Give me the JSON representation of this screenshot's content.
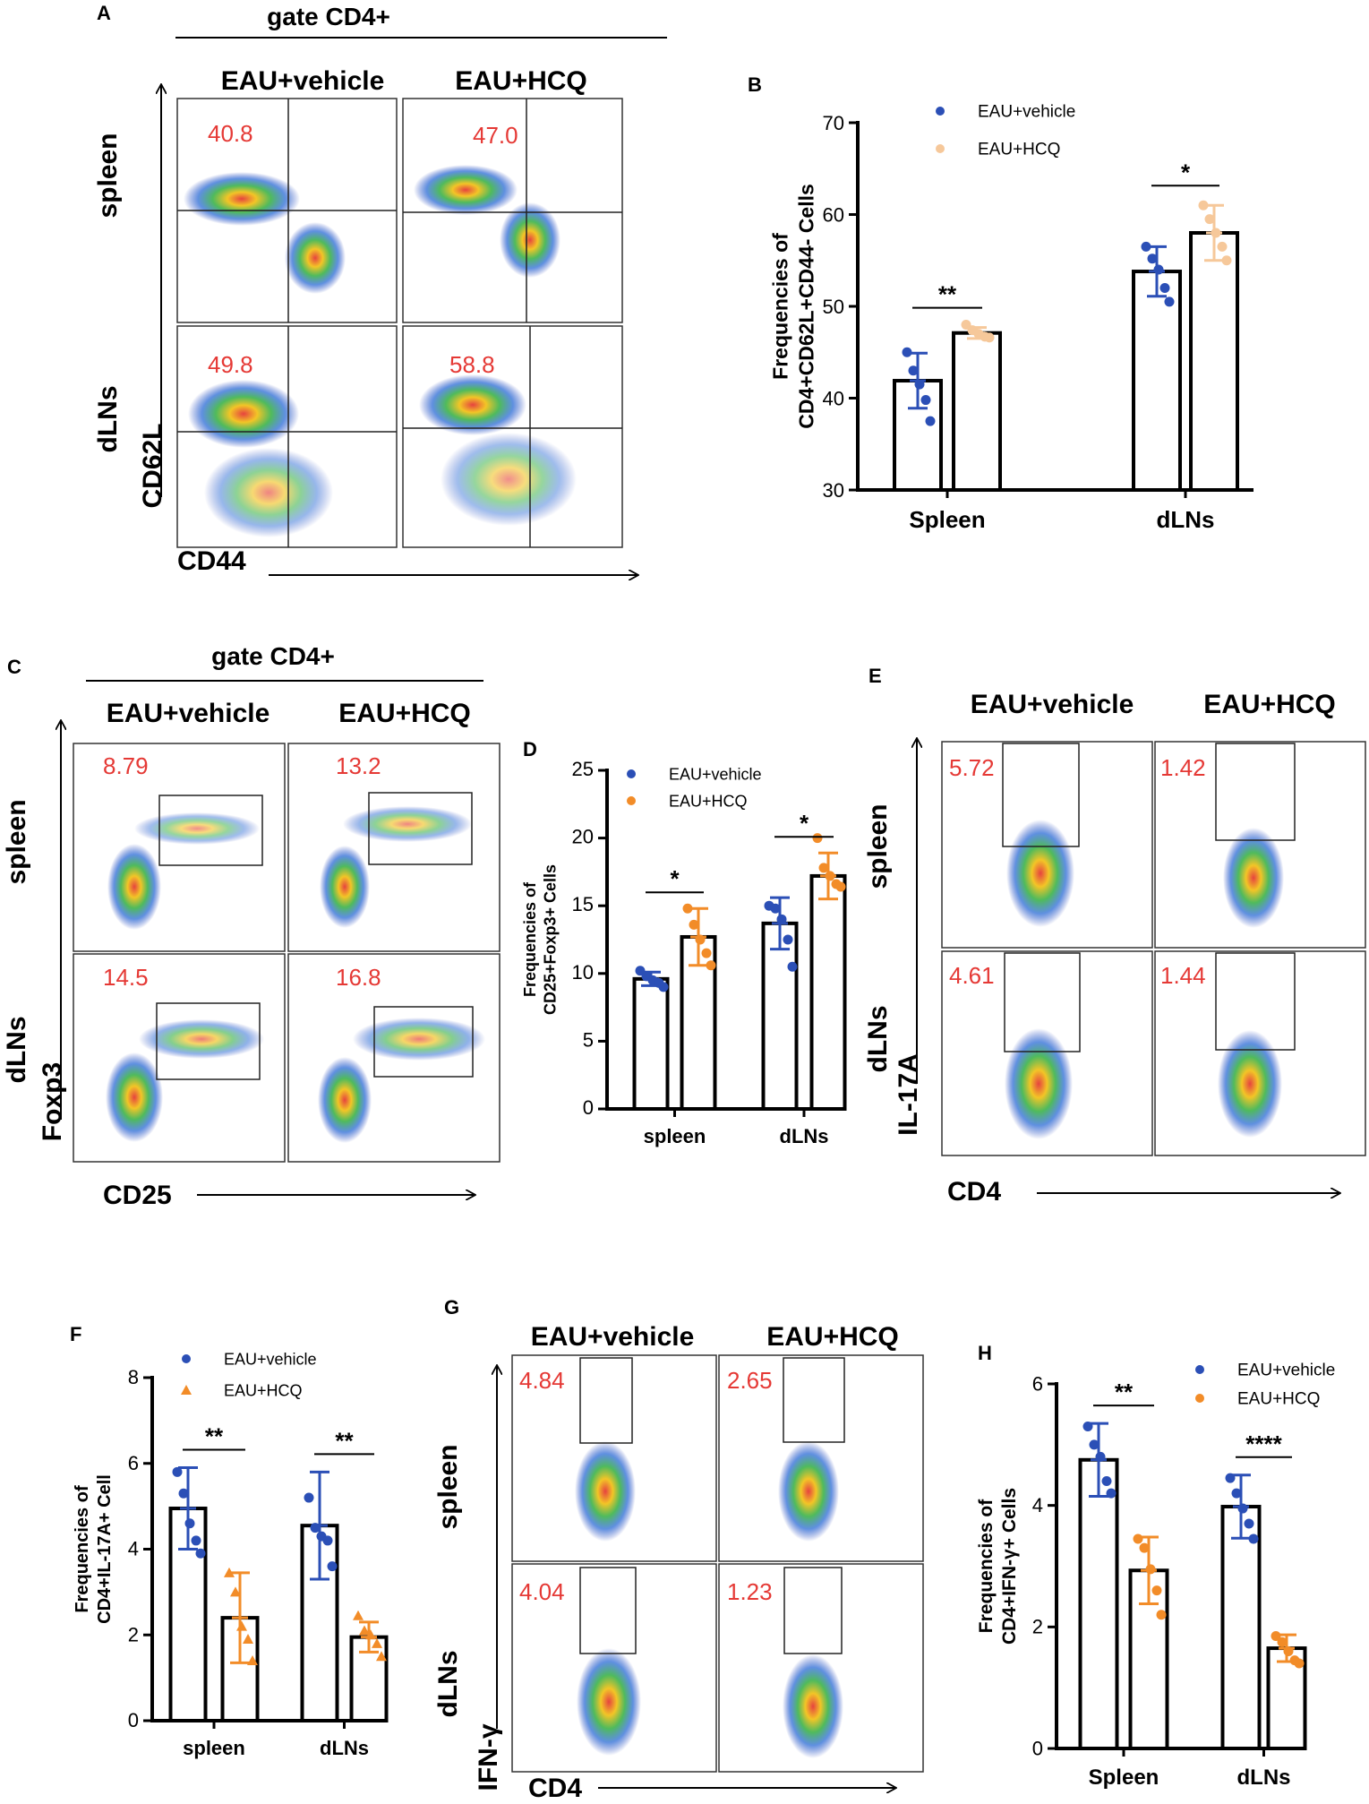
{
  "panels": {
    "A": {
      "letter": "A",
      "gate": "gate CD4+",
      "columns": [
        "EAU+vehicle",
        "EAU+HCQ"
      ],
      "rows": [
        "spleen",
        "dLNs"
      ],
      "x_marker": "CD44",
      "y_marker": "CD62L",
      "percentages": [
        [
          "40.8",
          "47.0"
        ],
        [
          "49.8",
          "58.8"
        ]
      ]
    },
    "C": {
      "letter": "C",
      "gate": "gate CD4+",
      "columns": [
        "EAU+vehicle",
        "EAU+HCQ"
      ],
      "rows": [
        "spleen",
        "dLNs"
      ],
      "x_marker": "CD25",
      "y_marker": "Foxp3",
      "percentages": [
        [
          "8.79",
          "13.2"
        ],
        [
          "14.5",
          "16.8"
        ]
      ]
    },
    "E": {
      "letter": "E",
      "columns": [
        "EAU+vehicle",
        "EAU+HCQ"
      ],
      "rows": [
        "spleen",
        "dLNs"
      ],
      "x_marker": "CD4",
      "y_marker": "IL-17A",
      "percentages": [
        [
          "5.72",
          "1.42"
        ],
        [
          "4.61",
          "1.44"
        ]
      ]
    },
    "G": {
      "letter": "G",
      "columns": [
        "EAU+vehicle",
        "EAU+HCQ"
      ],
      "rows": [
        "spleen",
        "dLNs"
      ],
      "x_marker": "CD4",
      "y_marker": "IFN-γ",
      "percentages": [
        [
          "4.84",
          "2.65"
        ],
        [
          "4.04",
          "1.23"
        ]
      ]
    }
  },
  "colors": {
    "vehicle": "#2b4fb6",
    "hcq_B": "#f6c89a",
    "hcq": "#f28c28",
    "percent_text": "#e53935"
  },
  "chart_data": [
    {
      "panel": "B",
      "type": "bar",
      "categories": [
        "Spleen",
        "dLNs"
      ],
      "ylabel": "Frequencies of CD4+CD62L+CD44- Cells",
      "ylim": [
        30,
        70
      ],
      "yticks": [
        "30",
        "40",
        "50",
        "60",
        "70"
      ],
      "marker": "circle",
      "series": [
        {
          "name": "EAU+vehicle",
          "values": [
            41.9,
            53.8
          ],
          "sd": [
            3.0,
            2.7
          ],
          "points": [
            [
              45.0,
              43.0,
              41.5,
              39.8,
              37.5
            ],
            [
              56.5,
              55.2,
              54.0,
              52.0,
              50.5
            ]
          ]
        },
        {
          "name": "EAU+HCQ",
          "values": [
            47.1,
            58.0
          ],
          "sd": [
            0.6,
            3.0
          ],
          "points": [
            [
              48.0,
              47.4,
              47.0,
              46.7,
              46.6
            ],
            [
              61.0,
              59.5,
              58.0,
              56.5,
              55.0
            ]
          ]
        }
      ],
      "significance": [
        "**",
        "*"
      ]
    },
    {
      "panel": "D",
      "type": "bar",
      "categories": [
        "spleen",
        "dLNs"
      ],
      "ylabel": "Frequencies of CD25+Foxp3+ Cells",
      "ylim": [
        0,
        25
      ],
      "yticks": [
        "0",
        "5",
        "10",
        "15",
        "20",
        "25"
      ],
      "marker": "circle",
      "series": [
        {
          "name": "EAU+vehicle",
          "values": [
            9.6,
            13.7
          ],
          "sd": [
            0.5,
            1.9
          ],
          "points": [
            [
              10.2,
              9.8,
              9.5,
              9.3,
              9.0
            ],
            [
              15.0,
              14.8,
              14.0,
              12.5,
              10.5
            ]
          ]
        },
        {
          "name": "EAU+HCQ",
          "values": [
            12.7,
            17.2
          ],
          "sd": [
            2.1,
            1.7
          ],
          "points": [
            [
              14.8,
              13.6,
              12.5,
              11.5,
              10.6
            ],
            [
              20.0,
              17.8,
              17.2,
              16.6,
              16.4
            ]
          ]
        }
      ],
      "significance": [
        "*",
        "*"
      ]
    },
    {
      "panel": "F",
      "type": "bar",
      "categories": [
        "spleen",
        "dLNs"
      ],
      "ylabel": "Frequencies of CD4+IL-17A+ Cell",
      "ylim": [
        0,
        8
      ],
      "yticks": [
        "0",
        "2",
        "4",
        "6",
        "8"
      ],
      "marker": "triangle",
      "series": [
        {
          "name": "EAU+vehicle",
          "values": [
            4.95,
            4.55
          ],
          "sd": [
            0.95,
            1.25
          ],
          "points": [
            [
              5.8,
              5.3,
              4.6,
              4.2,
              3.9
            ],
            [
              5.2,
              4.5,
              4.3,
              4.2,
              3.6
            ]
          ]
        },
        {
          "name": "EAU+HCQ",
          "values": [
            2.4,
            1.95
          ],
          "sd": [
            1.05,
            0.35
          ],
          "points": [
            [
              3.45,
              3.0,
              2.2,
              1.9,
              1.4
            ],
            [
              2.45,
              2.1,
              2.0,
              1.8,
              1.5
            ]
          ]
        }
      ],
      "significance": [
        "**",
        "**"
      ]
    },
    {
      "panel": "H",
      "type": "bar",
      "categories": [
        "Spleen",
        "dLNs"
      ],
      "ylabel": "Frequencies of CD4+IFN-γ+ Cells",
      "ylim": [
        0,
        6
      ],
      "yticks": [
        "0",
        "2",
        "4",
        "6"
      ],
      "marker": "circle",
      "series": [
        {
          "name": "EAU+vehicle",
          "values": [
            4.75,
            3.98
          ],
          "sd": [
            0.6,
            0.52
          ],
          "points": [
            [
              5.3,
              5.0,
              4.8,
              4.4,
              4.2
            ],
            [
              4.45,
              4.2,
              3.95,
              3.7,
              3.45
            ]
          ]
        },
        {
          "name": "EAU+HCQ",
          "values": [
            2.93,
            1.65
          ],
          "sd": [
            0.55,
            0.22
          ],
          "points": [
            [
              3.45,
              3.3,
              2.95,
              2.6,
              2.2
            ],
            [
              1.85,
              1.75,
              1.6,
              1.45,
              1.4
            ]
          ]
        }
      ],
      "significance": [
        "**",
        "****"
      ]
    }
  ]
}
